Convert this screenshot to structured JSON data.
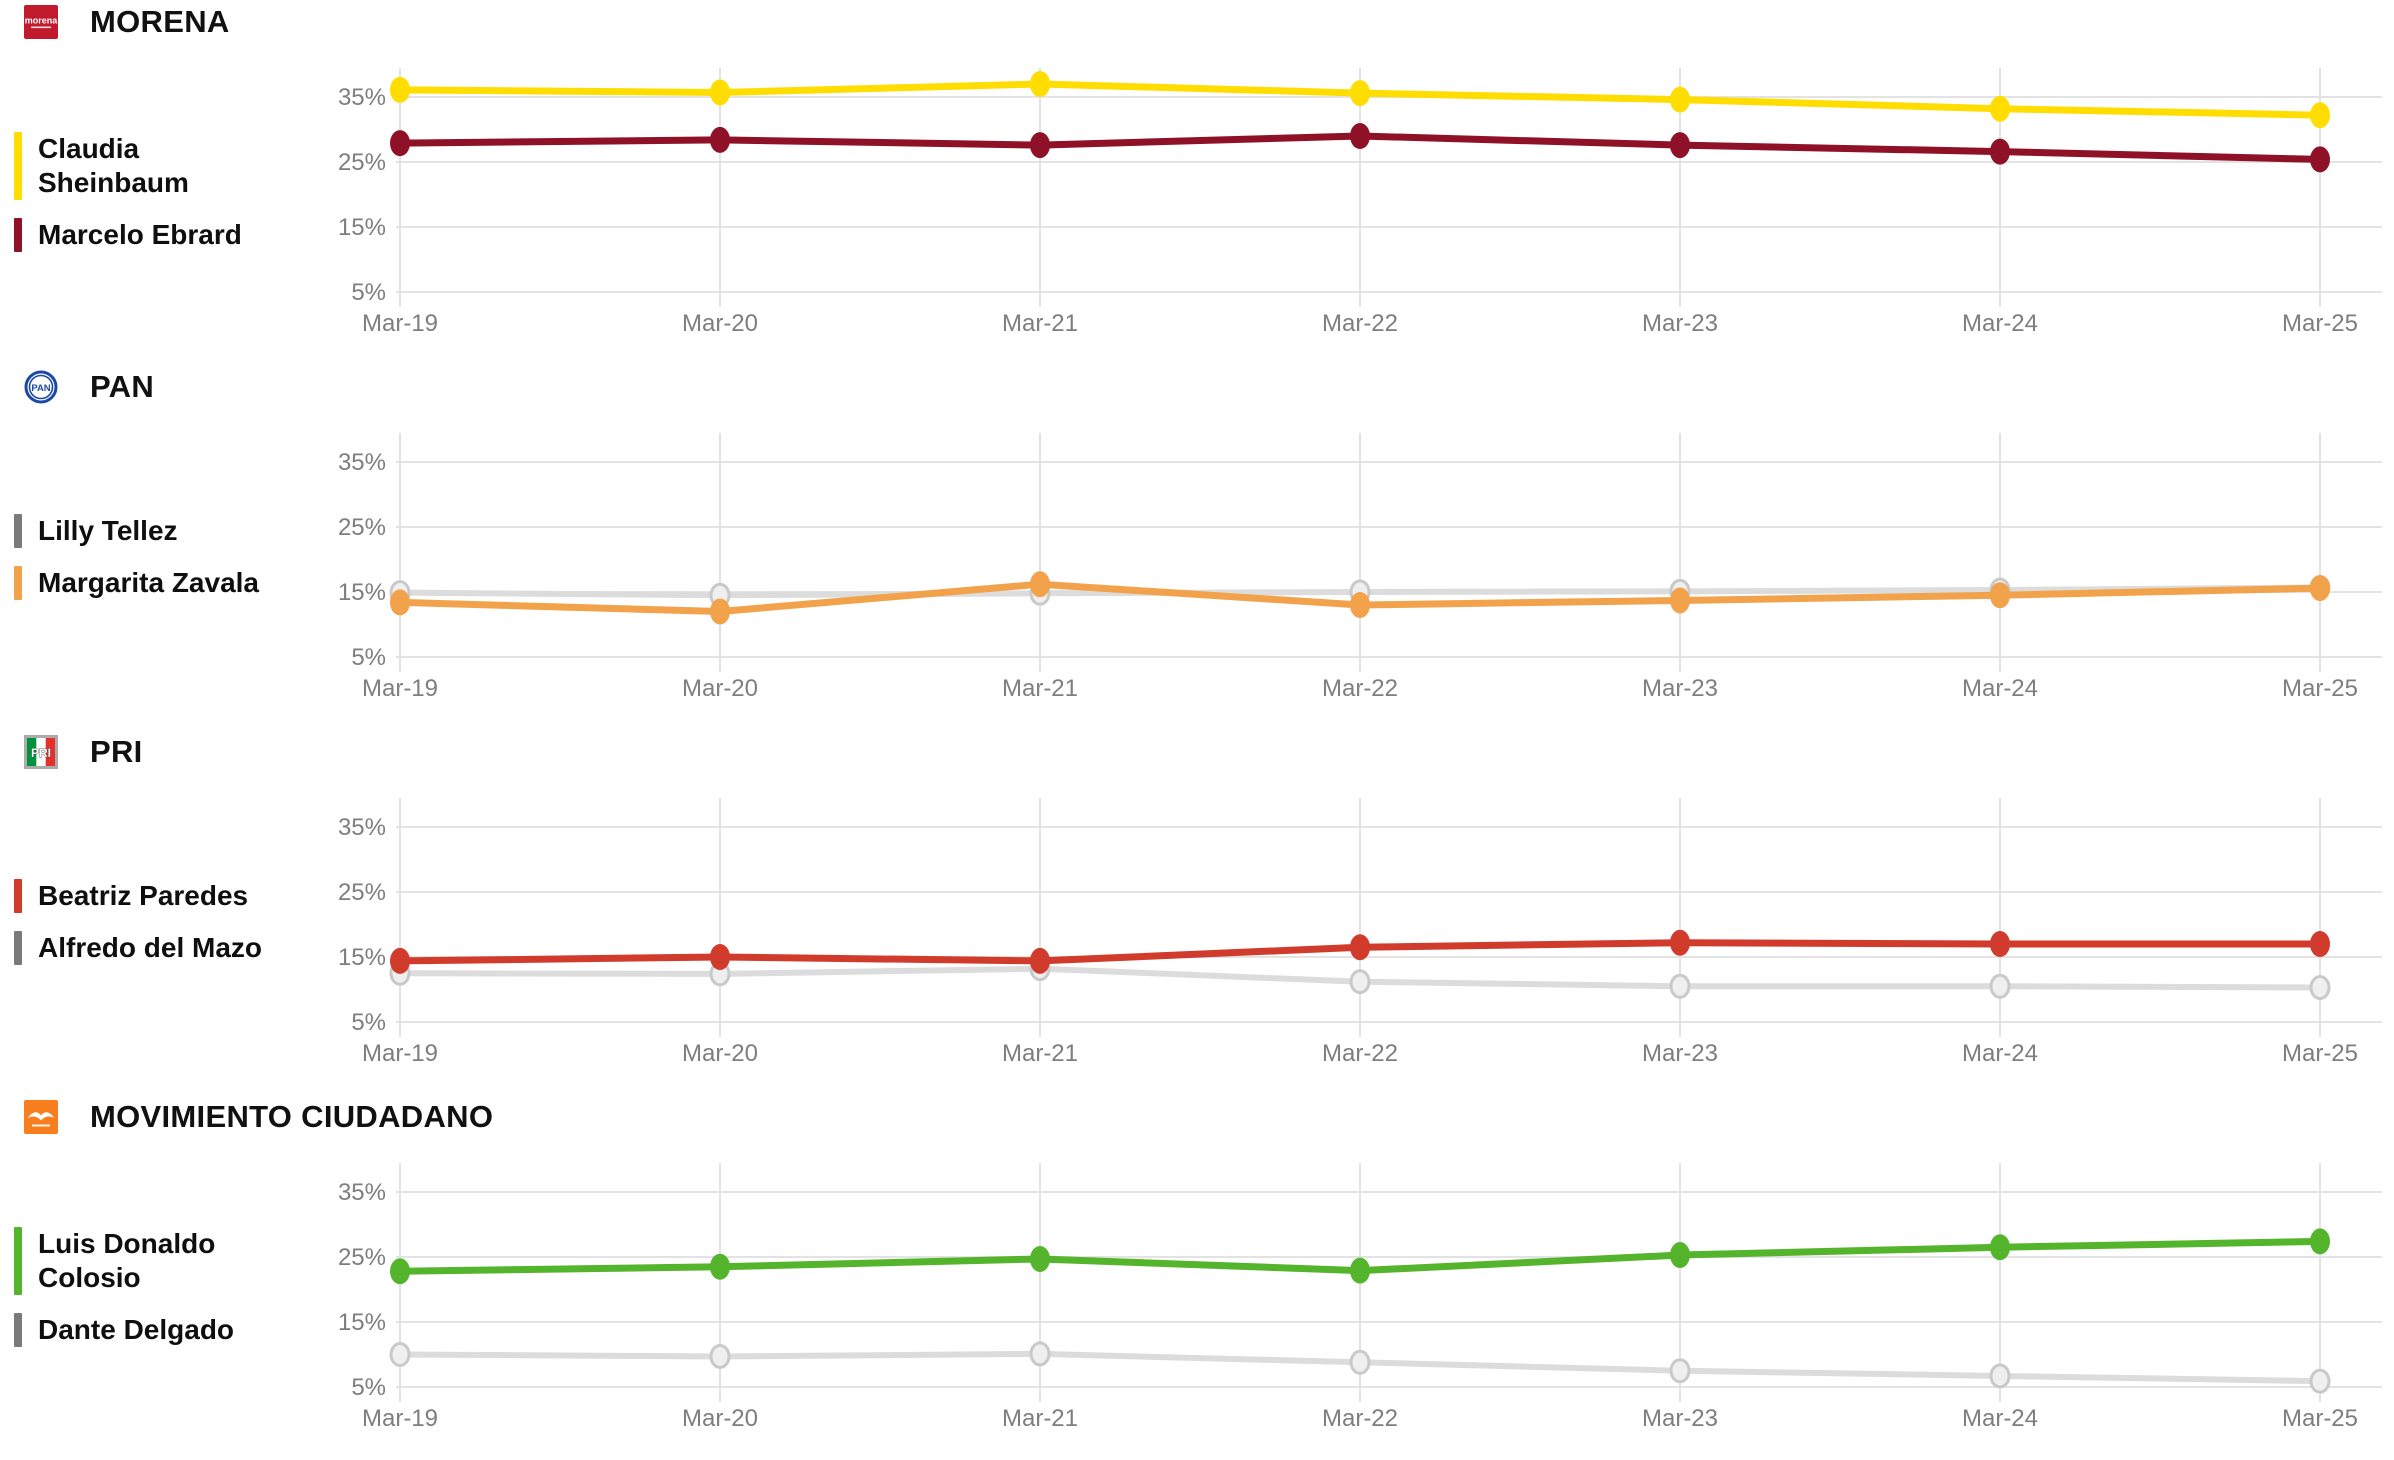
{
  "colors": {
    "background": "#ffffff",
    "grid": "#e3e3e3",
    "axis_text": "#7e7e7e",
    "muted_line": "#dcdcdc",
    "muted_marker_fill": "#efefef",
    "muted_marker_ring": "#c9c9c9",
    "muted_legend_swatch": "#7a7a7a",
    "morena_yellow": "#ffdd00",
    "morena_maroon": "#8e1127",
    "pan_orange": "#f2a24a",
    "pri_red": "#d13b2b",
    "mc_green": "#54b42c"
  },
  "axis": {
    "x_ticks": [
      "Mar-19",
      "Mar-20",
      "Mar-21",
      "Mar-22",
      "Mar-23",
      "Mar-24",
      "Mar-25"
    ],
    "y_ticks": [
      "35%",
      "25%",
      "15%",
      "5%"
    ],
    "y_tick_values": [
      35,
      25,
      15,
      5
    ]
  },
  "chart_data": [
    {
      "type": "line",
      "party": "MORENA",
      "logo": {
        "kind": "morena",
        "text": "morena",
        "bg": "#c01a2c"
      },
      "x": [
        "Mar-19",
        "Mar-20",
        "Mar-21",
        "Mar-22",
        "Mar-23",
        "Mar-24",
        "Mar-25"
      ],
      "yticks": [
        "35%",
        "25%",
        "15%",
        "5%"
      ],
      "ytick_values": [
        35,
        25,
        15,
        5
      ],
      "ylim": [
        1,
        40
      ],
      "grid": true,
      "legend_position": "left",
      "series": [
        {
          "name": "Claudia Sheinbaum",
          "lines": [
            "Claudia",
            "Sheinbaum"
          ],
          "color": "#ffdd00",
          "legend_color": "#ffdd00",
          "muted": false,
          "values": [
            36.1,
            35.7,
            37.0,
            35.6,
            34.6,
            33.2,
            32.2
          ]
        },
        {
          "name": "Marcelo Ebrard",
          "lines": [
            "Marcelo Ebrard"
          ],
          "color": "#8e1127",
          "legend_color": "#8e1127",
          "muted": false,
          "values": [
            27.9,
            28.4,
            27.6,
            29.0,
            27.6,
            26.6,
            25.4
          ]
        }
      ]
    },
    {
      "type": "line",
      "party": "PAN",
      "logo": {
        "kind": "pan",
        "text": "PAN",
        "bg": "#1c49a8"
      },
      "x": [
        "Mar-19",
        "Mar-20",
        "Mar-21",
        "Mar-22",
        "Mar-23",
        "Mar-24",
        "Mar-25"
      ],
      "yticks": [
        "35%",
        "25%",
        "15%",
        "5%"
      ],
      "ytick_values": [
        35,
        25,
        15,
        5
      ],
      "ylim": [
        1,
        40
      ],
      "grid": true,
      "legend_position": "left",
      "series": [
        {
          "name": "Lilly Tellez",
          "lines": [
            "Lilly Tellez"
          ],
          "color": "#dcdcdc",
          "legend_color": "#7a7a7a",
          "muted": true,
          "values": [
            14.9,
            14.5,
            14.8,
            15.0,
            15.1,
            15.3,
            15.7
          ]
        },
        {
          "name": "Margarita Zavala",
          "lines": [
            "Margarita Zavala"
          ],
          "color": "#f2a24a",
          "legend_color": "#f2a24a",
          "muted": false,
          "values": [
            13.4,
            12.0,
            16.2,
            13.0,
            13.7,
            14.5,
            15.6
          ]
        }
      ]
    },
    {
      "type": "line",
      "party": "PRI",
      "logo": {
        "kind": "pri",
        "text": "PRI",
        "bg": "#ababab"
      },
      "x": [
        "Mar-19",
        "Mar-20",
        "Mar-21",
        "Mar-22",
        "Mar-23",
        "Mar-24",
        "Mar-25"
      ],
      "yticks": [
        "35%",
        "25%",
        "15%",
        "5%"
      ],
      "ytick_values": [
        35,
        25,
        15,
        5
      ],
      "ylim": [
        1,
        40
      ],
      "grid": true,
      "legend_position": "left",
      "series": [
        {
          "name": "Beatriz Paredes",
          "lines": [
            "Beatriz Paredes"
          ],
          "color": "#d13b2b",
          "legend_color": "#d13b2b",
          "muted": false,
          "values": [
            14.4,
            15.0,
            14.4,
            16.5,
            17.2,
            17.0,
            17.0
          ]
        },
        {
          "name": "Alfredo del Mazo",
          "lines": [
            "Alfredo del Mazo"
          ],
          "color": "#dcdcdc",
          "legend_color": "#7a7a7a",
          "muted": true,
          "values": [
            12.5,
            12.4,
            13.2,
            11.2,
            10.5,
            10.5,
            10.3
          ]
        }
      ]
    },
    {
      "type": "line",
      "party": "MOVIMIENTO CIUDADANO",
      "logo": {
        "kind": "mc",
        "text": "",
        "bg": "#f87e1e"
      },
      "x": [
        "Mar-19",
        "Mar-20",
        "Mar-21",
        "Mar-22",
        "Mar-23",
        "Mar-24",
        "Mar-25"
      ],
      "yticks": [
        "35%",
        "25%",
        "15%",
        "5%"
      ],
      "ytick_values": [
        35,
        25,
        15,
        5
      ],
      "ylim": [
        1,
        40
      ],
      "grid": true,
      "legend_position": "left",
      "series": [
        {
          "name": "Luis Donaldo Colosio",
          "lines": [
            "Luis Donaldo",
            "Colosio"
          ],
          "color": "#54b42c",
          "legend_color": "#54b42c",
          "muted": false,
          "values": [
            22.8,
            23.5,
            24.7,
            22.9,
            25.3,
            26.5,
            27.4
          ]
        },
        {
          "name": "Dante Delgado",
          "lines": [
            "Dante Delgado"
          ],
          "color": "#dcdcdc",
          "legend_color": "#7a7a7a",
          "muted": true,
          "values": [
            10.0,
            9.7,
            10.1,
            8.8,
            7.5,
            6.7,
            5.9
          ]
        }
      ]
    }
  ]
}
